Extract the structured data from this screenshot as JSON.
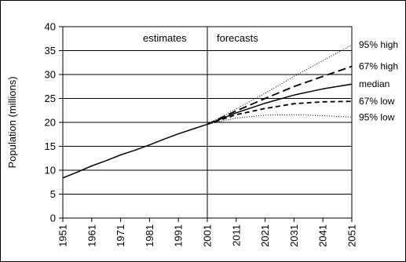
{
  "chart_data": {
    "type": "line",
    "title": "",
    "xlabel": "",
    "ylabel": "Population (millions)",
    "xlim": [
      1951,
      2051
    ],
    "ylim": [
      0,
      40
    ],
    "x_ticks": [
      1951,
      1961,
      1971,
      1981,
      1991,
      2001,
      2011,
      2021,
      2031,
      2041,
      2051
    ],
    "y_ticks": [
      0,
      5,
      10,
      15,
      20,
      25,
      30,
      35,
      40
    ],
    "grid": "horizontal",
    "divider_x": 2001,
    "annotations": {
      "left": "estimates",
      "right": "forecasts"
    },
    "series": [
      {
        "name": "",
        "style": "solid",
        "x": [
          1951,
          1956,
          1961,
          1966,
          1971,
          1976,
          1981,
          1986,
          1991,
          1996,
          2001
        ],
        "y": [
          8.4,
          9.6,
          10.9,
          12.0,
          13.2,
          14.2,
          15.3,
          16.5,
          17.6,
          18.6,
          19.6
        ]
      },
      {
        "name": "95% high",
        "style": "dotted",
        "x": [
          2001,
          2011,
          2021,
          2031,
          2041,
          2051
        ],
        "y": [
          19.6,
          22.8,
          26.1,
          29.6,
          32.9,
          36.2
        ]
      },
      {
        "name": "67% high",
        "style": "long-dash",
        "x": [
          2001,
          2011,
          2021,
          2031,
          2041,
          2051
        ],
        "y": [
          19.6,
          22.4,
          25.0,
          27.5,
          29.6,
          31.7
        ]
      },
      {
        "name": "median",
        "style": "solid",
        "x": [
          2001,
          2011,
          2021,
          2031,
          2041,
          2051
        ],
        "y": [
          19.6,
          22.0,
          24.0,
          25.7,
          27.0,
          28.0
        ]
      },
      {
        "name": "67% low",
        "style": "dashed",
        "x": [
          2001,
          2011,
          2021,
          2031,
          2041,
          2051
        ],
        "y": [
          19.6,
          21.6,
          22.9,
          23.9,
          24.3,
          24.4
        ]
      },
      {
        "name": "95% low",
        "style": "dotted",
        "x": [
          2001,
          2011,
          2021,
          2031,
          2041,
          2051
        ],
        "y": [
          19.6,
          20.9,
          21.5,
          21.6,
          21.4,
          21.1
        ]
      }
    ]
  }
}
